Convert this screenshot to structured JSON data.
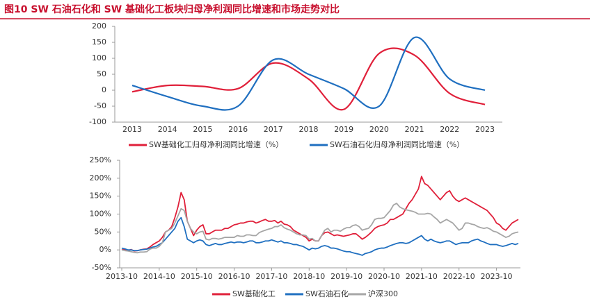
{
  "title": "图10  SW 石油石化和 SW 基础化工板块归母净利润同比增速和市场走势对比",
  "chart_data": [
    {
      "type": "line",
      "smooth": true,
      "legend": "bottom",
      "categories": [
        "2013",
        "2014",
        "2015",
        "2016",
        "2017",
        "2018",
        "2019",
        "2020",
        "2021",
        "2022",
        "2023"
      ],
      "ylim": [
        -100,
        200
      ],
      "yticks": [
        -100,
        -50,
        0,
        50,
        100,
        150,
        200
      ],
      "series": [
        {
          "name": "SW基础化工归母净利润同比增速（%）",
          "color": "#e0203a",
          "values": [
            -5,
            15,
            12,
            5,
            85,
            35,
            -60,
            115,
            110,
            -10,
            -45
          ]
        },
        {
          "name": "SW石油石化归母净利润同比增速（%）",
          "color": "#1f6fc0",
          "values": [
            15,
            -20,
            -50,
            -50,
            95,
            50,
            5,
            -50,
            165,
            35,
            0
          ]
        }
      ]
    },
    {
      "type": "line",
      "smooth": false,
      "legend": "bottom",
      "x": [
        "2013-10",
        "2013-11",
        "2013-12",
        "2014-01",
        "2014-02",
        "2014-03",
        "2014-04",
        "2014-05",
        "2014-06",
        "2014-07",
        "2014-08",
        "2014-09",
        "2014-10",
        "2014-11",
        "2014-12",
        "2015-01",
        "2015-02",
        "2015-03",
        "2015-04",
        "2015-05",
        "2015-06",
        "2015-07",
        "2015-08",
        "2015-09",
        "2015-10",
        "2015-11",
        "2015-12",
        "2016-01",
        "2016-02",
        "2016-03",
        "2016-04",
        "2016-05",
        "2016-06",
        "2016-07",
        "2016-08",
        "2016-09",
        "2016-10",
        "2016-11",
        "2016-12",
        "2017-01",
        "2017-02",
        "2017-03",
        "2017-04",
        "2017-05",
        "2017-06",
        "2017-07",
        "2017-08",
        "2017-09",
        "2017-10",
        "2017-11",
        "2017-12",
        "2018-01",
        "2018-02",
        "2018-03",
        "2018-04",
        "2018-05",
        "2018-06",
        "2018-07",
        "2018-08",
        "2018-09",
        "2018-10",
        "2018-11",
        "2018-12",
        "2019-01",
        "2019-02",
        "2019-03",
        "2019-04",
        "2019-05",
        "2019-06",
        "2019-07",
        "2019-08",
        "2019-09",
        "2019-10",
        "2019-11",
        "2019-12",
        "2020-01",
        "2020-02",
        "2020-03",
        "2020-04",
        "2020-05",
        "2020-06",
        "2020-07",
        "2020-08",
        "2020-09",
        "2020-10",
        "2020-11",
        "2020-12",
        "2021-01",
        "2021-02",
        "2021-03",
        "2021-04",
        "2021-05",
        "2021-06",
        "2021-07",
        "2021-08",
        "2021-09",
        "2021-10",
        "2021-11",
        "2021-12",
        "2022-01",
        "2022-02",
        "2022-03",
        "2022-04",
        "2022-05",
        "2022-06",
        "2022-07",
        "2022-08",
        "2022-09",
        "2022-10",
        "2022-11",
        "2022-12",
        "2023-01",
        "2023-02",
        "2023-03",
        "2023-04",
        "2023-05",
        "2023-06",
        "2023-07",
        "2023-08",
        "2023-09",
        "2023-10",
        "2023-11",
        "2023-12",
        "2024-01",
        "2024-02",
        "2024-03",
        "2024-04",
        "2024-05"
      ],
      "xticks": [
        "2013-10",
        "2014-10",
        "2015-10",
        "2016-10",
        "2017-10",
        "2018-10",
        "2019-10",
        "2020-10",
        "2021-10",
        "2022-10",
        "2023-10"
      ],
      "ylim": [
        -50,
        250
      ],
      "yticks": [
        {
          "value": -50,
          "label": "-50%"
        },
        {
          "value": 0,
          "label": "0%"
        },
        {
          "value": 50,
          "label": "50%"
        },
        {
          "value": 100,
          "label": "100%"
        },
        {
          "value": 150,
          "label": "150%"
        },
        {
          "value": 200,
          "label": "200%"
        },
        {
          "value": 250,
          "label": "250%"
        }
      ],
      "series": [
        {
          "name": "SW基础化工",
          "color": "#e0203a",
          "values": [
            0,
            2,
            -2,
            1,
            -3,
            -2,
            0,
            2,
            3,
            8,
            15,
            20,
            25,
            35,
            50,
            55,
            65,
            90,
            120,
            160,
            140,
            80,
            60,
            40,
            55,
            65,
            70,
            45,
            45,
            50,
            55,
            55,
            55,
            60,
            60,
            65,
            70,
            72,
            75,
            75,
            78,
            80,
            80,
            75,
            78,
            82,
            85,
            80,
            80,
            82,
            75,
            80,
            72,
            70,
            65,
            55,
            50,
            45,
            40,
            35,
            25,
            30,
            25,
            25,
            40,
            48,
            50,
            45,
            40,
            42,
            40,
            38,
            40,
            42,
            45,
            45,
            38,
            30,
            35,
            42,
            50,
            60,
            65,
            68,
            70,
            75,
            85,
            85,
            90,
            95,
            100,
            115,
            130,
            140,
            155,
            170,
            205,
            185,
            180,
            170,
            160,
            150,
            140,
            150,
            160,
            165,
            150,
            140,
            135,
            140,
            145,
            140,
            135,
            130,
            125,
            120,
            115,
            110,
            100,
            90,
            75,
            70,
            60,
            55,
            65,
            75,
            80,
            85
          ]
        },
        {
          "name": "SW石油石化",
          "color": "#1f6fc0",
          "values": [
            5,
            3,
            0,
            0,
            -2,
            -2,
            0,
            1,
            2,
            5,
            8,
            10,
            15,
            20,
            30,
            40,
            50,
            60,
            80,
            90,
            65,
            30,
            25,
            20,
            25,
            28,
            25,
            15,
            12,
            15,
            18,
            15,
            15,
            18,
            20,
            22,
            20,
            22,
            22,
            20,
            22,
            25,
            25,
            20,
            20,
            22,
            25,
            25,
            28,
            25,
            22,
            25,
            20,
            20,
            18,
            15,
            15,
            12,
            10,
            5,
            0,
            5,
            3,
            5,
            10,
            12,
            10,
            5,
            5,
            3,
            0,
            -3,
            -5,
            -5,
            -8,
            -10,
            -12,
            -15,
            -10,
            -8,
            -5,
            0,
            3,
            5,
            5,
            8,
            12,
            15,
            18,
            20,
            20,
            18,
            20,
            25,
            30,
            35,
            40,
            30,
            25,
            30,
            25,
            22,
            20,
            22,
            25,
            25,
            20,
            15,
            18,
            20,
            20,
            20,
            25,
            28,
            30,
            25,
            22,
            18,
            15,
            15,
            15,
            12,
            10,
            12,
            15,
            18,
            15,
            18
          ]
        },
        {
          "name": "沪深300",
          "color": "#a6a6a6",
          "values": [
            0,
            -2,
            -3,
            -5,
            -7,
            -8,
            -6,
            -6,
            -5,
            2,
            5,
            5,
            10,
            20,
            50,
            55,
            60,
            75,
            95,
            115,
            110,
            80,
            60,
            50,
            45,
            50,
            52,
            30,
            28,
            32,
            32,
            30,
            32,
            35,
            35,
            35,
            35,
            40,
            38,
            38,
            42,
            42,
            40,
            40,
            48,
            52,
            55,
            58,
            60,
            65,
            65,
            70,
            62,
            58,
            55,
            50,
            45,
            42,
            42,
            40,
            30,
            32,
            25,
            25,
            40,
            55,
            60,
            50,
            55,
            55,
            52,
            58,
            62,
            62,
            68,
            70,
            65,
            55,
            58,
            60,
            70,
            85,
            88,
            88,
            90,
            100,
            110,
            125,
            130,
            120,
            115,
            112,
            110,
            108,
            105,
            100,
            100,
            100,
            102,
            100,
            92,
            85,
            75,
            80,
            85,
            80,
            75,
            65,
            55,
            60,
            75,
            75,
            72,
            70,
            65,
            62,
            60,
            62,
            58,
            52,
            50,
            45,
            40,
            35,
            38,
            45,
            48,
            50
          ]
        }
      ]
    }
  ]
}
